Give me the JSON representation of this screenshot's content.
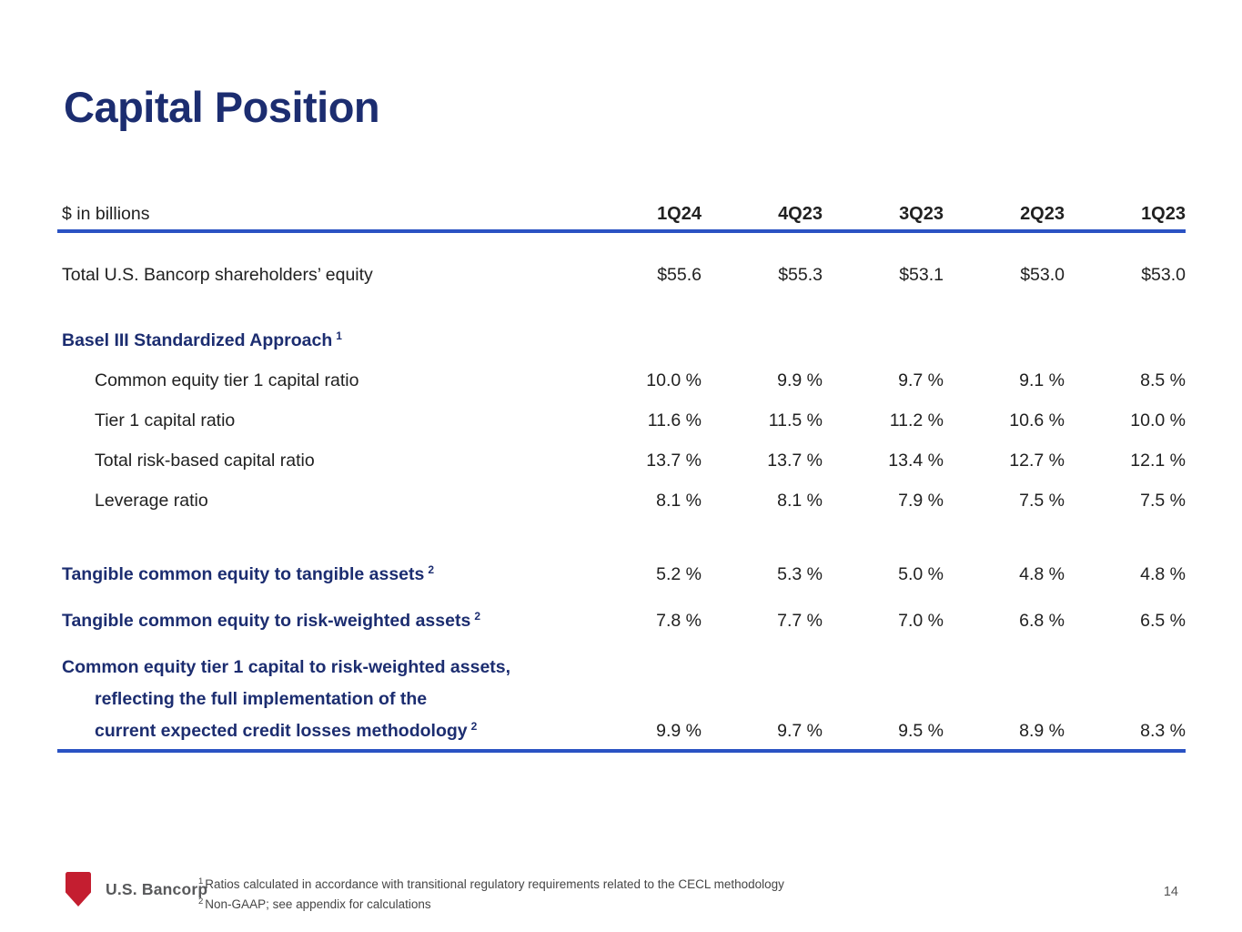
{
  "colors": {
    "navy": "#1c2d70",
    "blue": "#2a52c3",
    "ink": "#212121",
    "red": "#c41e30"
  },
  "slide": {
    "title": "Capital Position",
    "page_number": "14",
    "footer": {
      "brand": "U.S. Bancorp",
      "footnote1_marker": "1",
      "footnote1": "Ratios calculated in accordance with transitional regulatory requirements related to the CECL methodology",
      "footnote2_marker": "2",
      "footnote2": "Non-GAAP; see appendix for calculations"
    }
  },
  "table": {
    "unit_label": "$ in billions",
    "columns": [
      "1Q24",
      "4Q23",
      "3Q23",
      "2Q23",
      "1Q23"
    ],
    "rows": [
      {
        "style": "plain",
        "label": "Total U.S. Bancorp shareholders’ equity",
        "values": [
          "$55.6",
          "$55.3",
          "$53.1",
          "$53.0",
          "$53.0"
        ]
      },
      {
        "style": "section",
        "label": "Basel III Standardized Approach",
        "sup": "1",
        "values": [
          "",
          "",
          "",
          "",
          ""
        ]
      },
      {
        "style": "indent",
        "label": "Common equity tier 1 capital ratio",
        "values": [
          "10.0 %",
          "9.9 %",
          "9.7 %",
          "9.1 %",
          "8.5 %"
        ]
      },
      {
        "style": "indent",
        "label": "Tier 1 capital ratio",
        "values": [
          "11.6 %",
          "11.5 %",
          "11.2 %",
          "10.6 %",
          "10.0 %"
        ]
      },
      {
        "style": "indent",
        "label": "Total risk-based capital ratio",
        "values": [
          "13.7 %",
          "13.7 %",
          "13.4 %",
          "12.7 %",
          "12.1 %"
        ]
      },
      {
        "style": "indent",
        "label": "Leverage ratio",
        "values": [
          "8.1 %",
          "8.1 %",
          "7.9 %",
          "7.5 %",
          "7.5 %"
        ]
      },
      {
        "style": "emphasis",
        "label": "Tangible common equity to tangible assets",
        "sup": "2",
        "values": [
          "5.2 %",
          "5.3 %",
          "5.0 %",
          "4.8 %",
          "4.8 %"
        ]
      },
      {
        "style": "emphasis",
        "label": "Tangible common equity to risk-weighted assets",
        "sup": "2",
        "values": [
          "7.8 %",
          "7.7 %",
          "7.0 %",
          "6.8 %",
          "6.5 %"
        ]
      },
      {
        "style": "emphasis-multiline",
        "lines": [
          {
            "text": "Common equity tier 1 capital to risk-weighted assets,",
            "indent": 0
          },
          {
            "text": "reflecting the full implementation of the",
            "indent": 1
          },
          {
            "text": "current expected credit losses methodology",
            "indent": 1,
            "sup": "2"
          }
        ],
        "values": [
          "9.9 %",
          "9.7 %",
          "9.5 %",
          "8.9 %",
          "8.3 %"
        ]
      }
    ]
  }
}
